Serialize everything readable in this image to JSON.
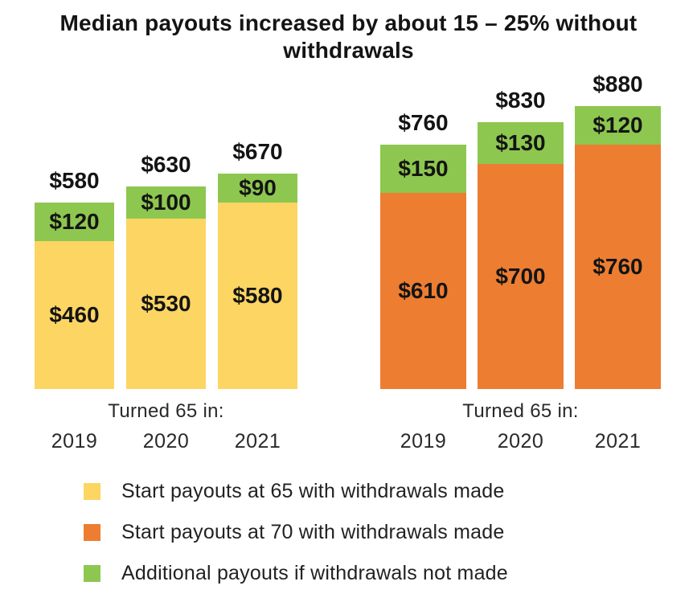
{
  "title": "Median payouts increased by about 15 – 25% without withdrawals",
  "chart_data": {
    "type": "bar",
    "stacked": true,
    "title": "Median payouts increased by about 15 – 25% without withdrawals",
    "unit_prefix": "$",
    "categories": [
      "2019",
      "2020",
      "2021"
    ],
    "x_axis_caption": "Turned 65 in:",
    "ylim": [
      0,
      940
    ],
    "grid": false,
    "groups": [
      {
        "id": "start-at-65",
        "base_series_name": "Start payouts at 65 with withdrawals made",
        "additional_series_name": "Additional payouts if withdrawals not made",
        "base_color": "#FCD563",
        "additional_color": "#8DC74F",
        "base_values": [
          460,
          530,
          580
        ],
        "additional_values": [
          120,
          100,
          90
        ],
        "totals": [
          580,
          630,
          670
        ]
      },
      {
        "id": "start-at-70",
        "base_series_name": "Start payouts at 70 with withdrawals made",
        "additional_series_name": "Additional payouts if withdrawals not made",
        "base_color": "#ED7D31",
        "additional_color": "#8DC74F",
        "base_values": [
          610,
          700,
          760
        ],
        "additional_values": [
          150,
          130,
          120
        ],
        "totals": [
          760,
          830,
          880
        ]
      }
    ],
    "legend": [
      {
        "label": "Start payouts at 65 with withdrawals made",
        "color": "#FCD563"
      },
      {
        "label": "Start payouts at 70 with withdrawals made",
        "color": "#ED7D31"
      },
      {
        "label": "Additional payouts if withdrawals not made",
        "color": "#8DC74F"
      }
    ],
    "legend_position": "bottom-left"
  }
}
